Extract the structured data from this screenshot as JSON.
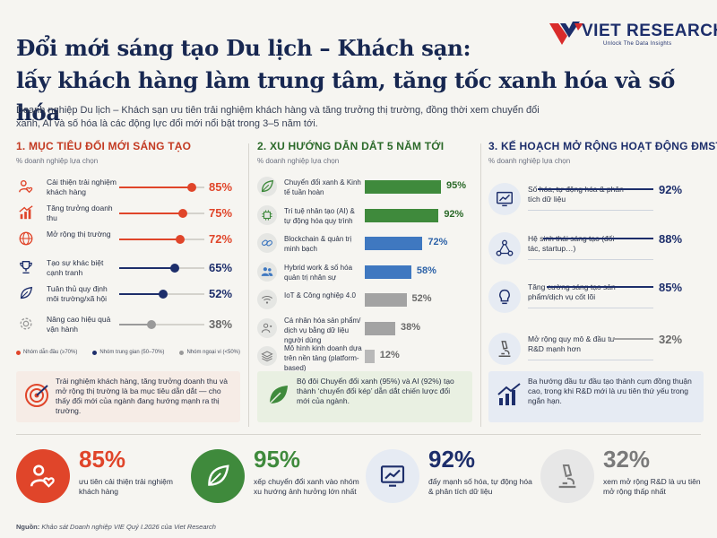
{
  "brand": {
    "name": "VIET RESEARCH",
    "tagline": "Unlock The Data Insights"
  },
  "title_line1": "Đổi mới sáng tạo Du lịch – Khách sạn:",
  "title_line2": "lấy khách hàng làm trung tâm, tăng tốc xanh hóa và số hóa",
  "intro": "Doanh nghiệp Du lịch – Khách sạn ưu tiên trải nghiệm khách hàng và tăng trưởng thị trường, đồng thời xem chuyển đổi xanh, AI và số hóa là các động lực đổi mới nổi bật trong 3–5 năm tới.",
  "section1": {
    "title": "1. MỤC TIÊU ĐỔI MỚI SÁNG TẠO",
    "subtitle": "% doanh nghiệp lựa chọn",
    "items": [
      {
        "label": "Cải thiện trải nghiệm khách hàng",
        "value": "85%",
        "pct": 85,
        "group": "top",
        "icon": "heart-user-icon"
      },
      {
        "label": "Tăng trưởng doanh thu",
        "value": "75%",
        "pct": 75,
        "group": "top",
        "icon": "growth-chart-icon"
      },
      {
        "label": "Mở rộng thị trường",
        "value": "72%",
        "pct": 72,
        "group": "top",
        "icon": "globe-icon"
      },
      {
        "label": "Tạo sự khác biệt cạnh tranh",
        "value": "65%",
        "pct": 65,
        "group": "mid",
        "icon": "trophy-icon"
      },
      {
        "label": "Tuân thủ quy định môi trường/xã hội",
        "value": "52%",
        "pct": 52,
        "group": "mid",
        "icon": "leaf-icon"
      },
      {
        "label": "Nâng cao hiệu quả vận hành",
        "value": "38%",
        "pct": 38,
        "group": "low",
        "icon": "gear-icon"
      }
    ],
    "legend": [
      {
        "label": "Nhóm dẫn đầu (≥70%)",
        "color": "#e0452a"
      },
      {
        "label": "Nhóm trung gian (50–70%)",
        "color": "#1d2e6b"
      },
      {
        "label": "Nhóm ngoại vi (<50%)",
        "color": "#9a9a9a"
      }
    ],
    "note": "Trải nghiệm khách hàng, tăng trưởng doanh thu và mở rộng thị trường là ba mục tiêu dẫn dắt — cho thấy đổi mới của ngành đang hướng mạnh ra thị trường."
  },
  "section2": {
    "title": "2. XU HƯỚNG DẪN DẮT 5 NĂM TỚI",
    "subtitle": "% doanh nghiệp lựa chọn",
    "items": [
      {
        "label": "Chuyển đổi xanh & Kinh tế tuần hoàn",
        "value": "95%",
        "pct": 95,
        "color": "#3f8a3c",
        "icon": "leaf-icon"
      },
      {
        "label": "Trí tuệ nhân tạo (AI) & tự động hóa quy trình",
        "value": "92%",
        "pct": 92,
        "color": "#3f8a3c",
        "icon": "chip-icon"
      },
      {
        "label": "Blockchain & quản trị minh bạch",
        "value": "72%",
        "pct": 72,
        "color": "#3f78c0",
        "icon": "chain-icon"
      },
      {
        "label": "Hybrid work & số hóa quản trị nhân sự",
        "value": "58%",
        "pct": 58,
        "color": "#3f78c0",
        "icon": "people-icon"
      },
      {
        "label": "IoT & Công nghiệp 4.0",
        "value": "52%",
        "pct": 52,
        "color": "#a3a3a3",
        "icon": "wifi-icon"
      },
      {
        "label": "Cá nhân hóa sản phẩm/ dịch vụ bằng dữ liệu người dùng",
        "value": "38%",
        "pct": 38,
        "color": "#a3a3a3",
        "icon": "user-data-icon"
      },
      {
        "label": "Mô hình kinh doanh dựa trên nền tảng (platform-based)",
        "value": "12%",
        "pct": 12,
        "color": "#b8b8b8",
        "icon": "layers-icon"
      }
    ],
    "note": "Bộ đôi Chuyển đổi xanh (95%) và AI (92%) tạo thành ‘chuyển đổi kép’ dẫn dắt chiến lược đổi mới của ngành."
  },
  "section3": {
    "title": "3. KẾ HOẠCH MỞ RỘNG HOẠT ĐỘNG ĐMST",
    "subtitle": "% doanh nghiệp lựa chọn",
    "items": [
      {
        "label": "Số hóa, tự động hóa & phân tích dữ liệu",
        "value": "92%",
        "pct": 92,
        "color": "#1d2e6b",
        "icon": "analytics-icon"
      },
      {
        "label": "Hệ sinh thái sáng tạo (đối tác, startup…)",
        "value": "88%",
        "pct": 88,
        "color": "#1d2e6b",
        "icon": "network-icon"
      },
      {
        "label": "Tăng cường sáng tạo sản phẩm/dịch vụ cốt lõi",
        "value": "85%",
        "pct": 85,
        "color": "#1d2e6b",
        "icon": "lightbulb-icon"
      },
      {
        "label": "Mở rộng quy mô & đầu tư R&D mạnh hơn",
        "value": "32%",
        "pct": 32,
        "color": "#a3a3a3",
        "icon": "microscope-icon"
      }
    ],
    "note": "Ba hướng đầu tư đầu tạo thành cụm đồng thuận cao, trong khi R&D mới là ưu tiên thứ yếu trong ngắn hạn."
  },
  "stats": [
    {
      "value": "85%",
      "text": "ưu tiên cải thiện trải nghiệm khách hàng",
      "color": "#e0452a",
      "icon": "heart-user-icon"
    },
    {
      "value": "95%",
      "text": "xếp chuyển đổi xanh vào nhóm xu hướng ảnh hưởng lớn nhất",
      "color": "#3f8a3c",
      "icon": "leaf-icon"
    },
    {
      "value": "92%",
      "text": "đẩy mạnh số hóa, tự động hóa & phân tích dữ liệu",
      "color": "#1d2e6b",
      "icon": "analytics-icon"
    },
    {
      "value": "32%",
      "text": "xem mở rộng R&D là ưu tiên mở rộng thấp nhất",
      "color": "#7a7a7a",
      "icon": "microscope-icon"
    }
  ],
  "source_label": "Nguồn:",
  "source_text": "Khảo sát Doanh nghiệp VIE Quý I.2026 của Viet Research"
}
